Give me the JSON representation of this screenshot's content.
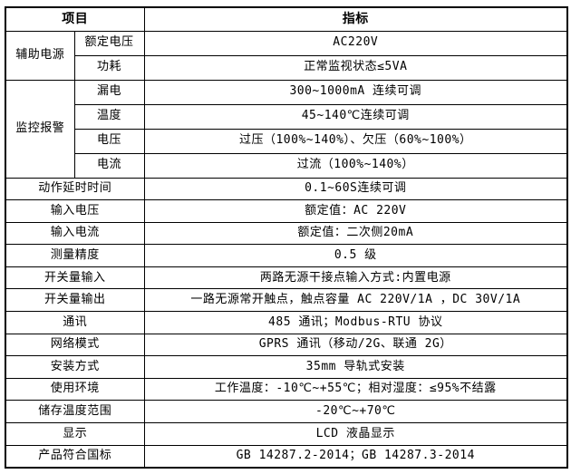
{
  "colors": {
    "border": "#000000",
    "background": "#ffffff",
    "text": "#000000"
  },
  "header": {
    "item": "项目",
    "value": "指标"
  },
  "groups": [
    {
      "label": "辅助电源",
      "rows": [
        {
          "sub": "额定电压",
          "value": "AC220V"
        },
        {
          "sub": "功耗",
          "value": "正常监视状态≤5VA"
        }
      ]
    },
    {
      "label": "监控报警",
      "rows": [
        {
          "sub": "漏电",
          "value": "300~1000mA 连续可调"
        },
        {
          "sub": "温度",
          "value": "45~140℃连续可调"
        },
        {
          "sub": "电压",
          "value": "过压（100%~140%）、欠压（60%~100%）"
        },
        {
          "sub": "电流",
          "value": "过流（100%~140%）"
        }
      ]
    }
  ],
  "rows": [
    {
      "item": "动作延时时间",
      "value": "0.1~60S连续可调"
    },
    {
      "item": "输入电压",
      "value": "额定值：AC 220V"
    },
    {
      "item": "输入电流",
      "value": "额定值：二次侧20mA"
    },
    {
      "item": "测量精度",
      "value": "0.5 级"
    },
    {
      "item": "开关量输入",
      "value": "两路无源干接点输入方式:内置电源"
    },
    {
      "item": "开关量输出",
      "value": "一路无源常开触点，触点容量 AC 220V/1A ，DC 30V/1A"
    },
    {
      "item": "通讯",
      "value": "485 通讯；Modbus-RTU 协议"
    },
    {
      "item": "网络模式",
      "value": "GPRS 通讯（移动/2G、联通 2G）"
    },
    {
      "item": "安装方式",
      "value": "35mm 导轨式安装"
    },
    {
      "item": "使用环境",
      "value": "工作温度：-10℃~+55℃；相对湿度：≤95%不结露"
    },
    {
      "item": "储存温度范围",
      "value": "-20℃~+70℃"
    },
    {
      "item": "显示",
      "value": "LCD 液晶显示"
    },
    {
      "item": "产品符合国标",
      "value": "GB 14287.2-2014；GB 14287.3-2014"
    }
  ]
}
